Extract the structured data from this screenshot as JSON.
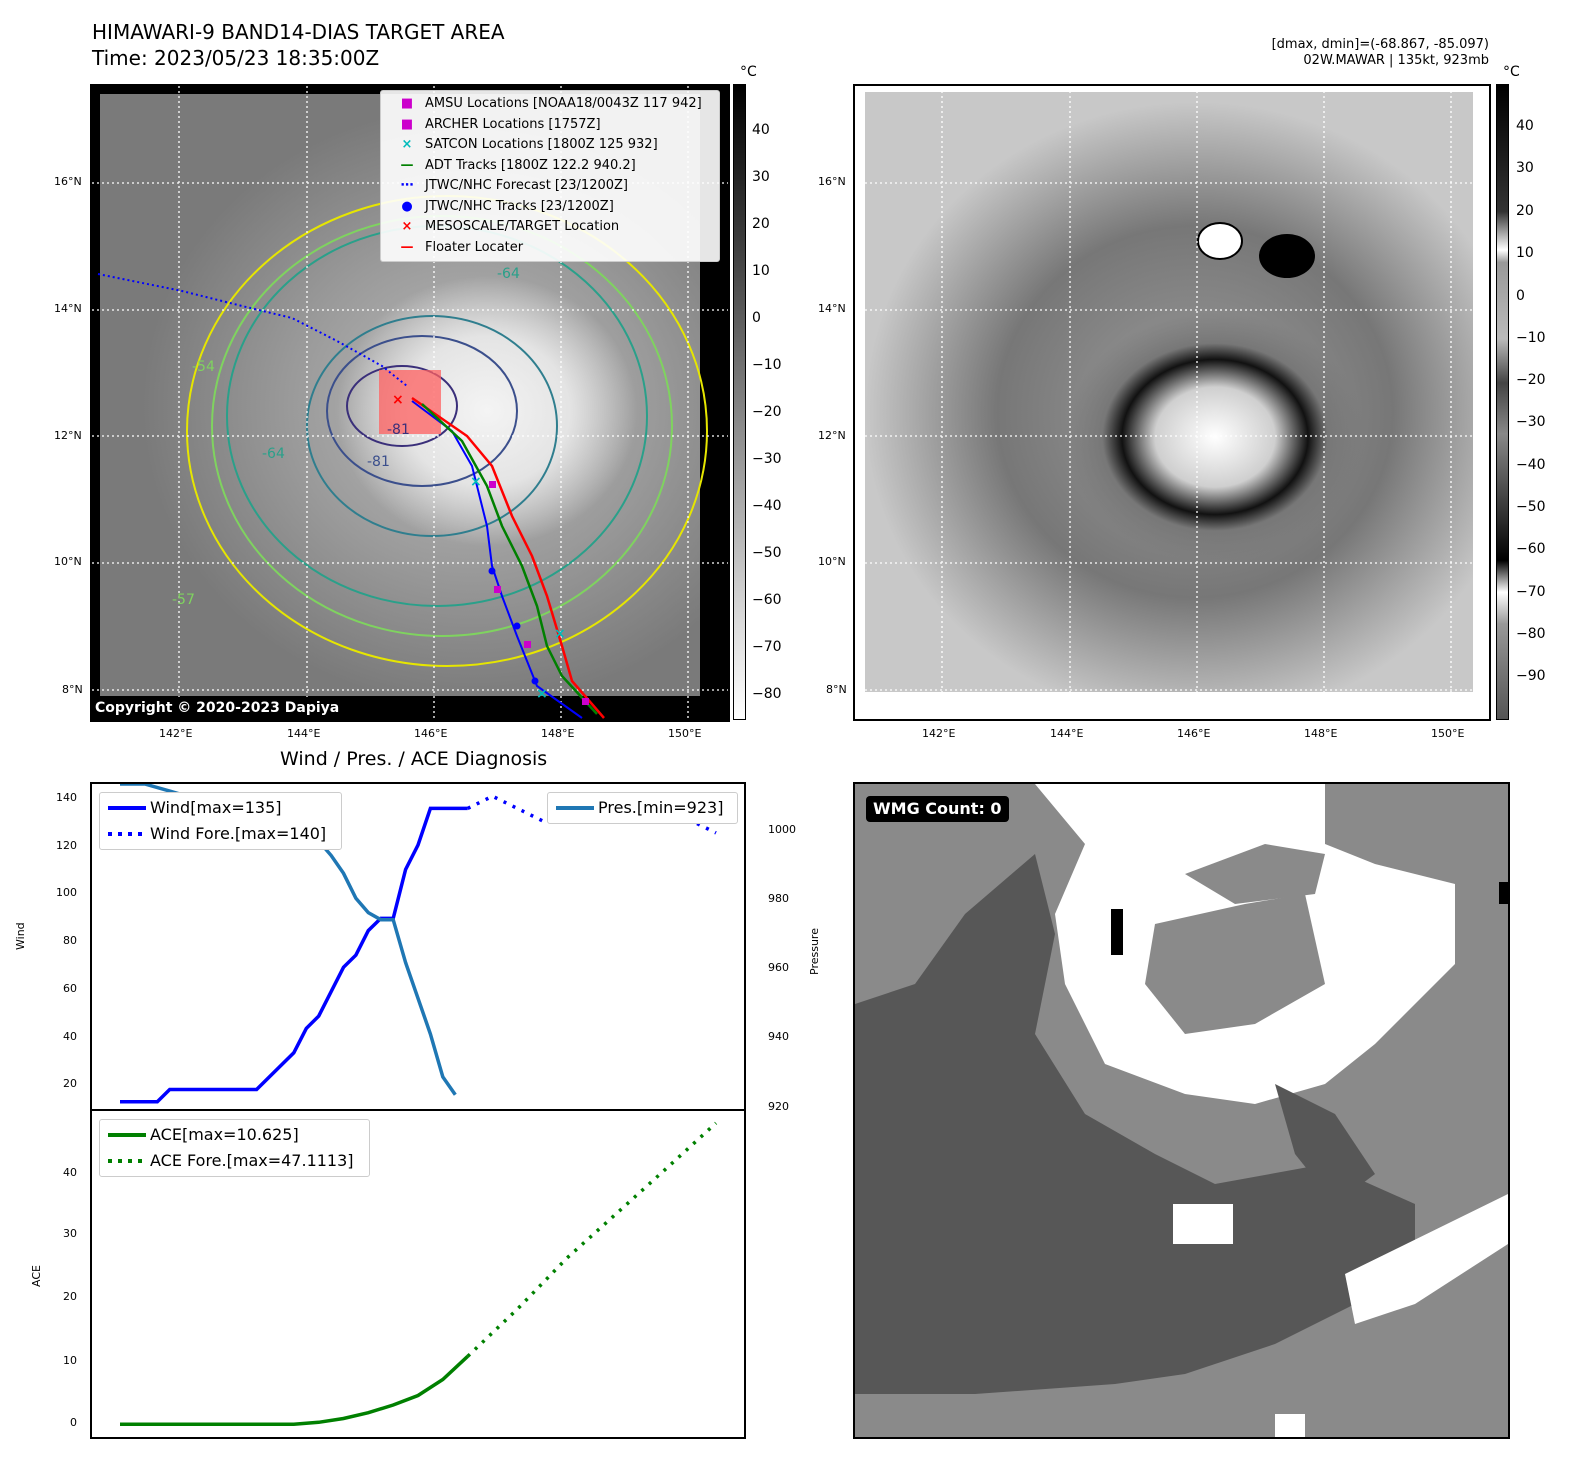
{
  "header": {
    "title_line1": "HIMAWARI-9 BAND14-DIAS TARGET AREA",
    "title_line2": "Time: 2023/05/23 18:35:00Z",
    "dmax_dmin": "[dmax, dmin]=(-68.867, -85.097)",
    "storm_info": "02W.MAWAR | 135kt, 923mb"
  },
  "map_left": {
    "lat_labels": [
      "16°N",
      "14°N",
      "12°N",
      "10°N",
      "8°N"
    ],
    "lon_labels": [
      "142°E",
      "144°E",
      "146°E",
      "148°E",
      "150°E"
    ],
    "contour_labels": [
      "-64",
      "-54",
      "-81",
      "-81",
      "-64",
      "-57"
    ],
    "copyright": "Copyright © 2020-2023 Dapiya",
    "legend": [
      {
        "label": "AMSU Locations [NOAA18/0043Z 117 942]",
        "marker": "■",
        "color": "#cc00cc"
      },
      {
        "label": "ARCHER Locations [1757Z]",
        "marker": "■",
        "color": "#cc00cc"
      },
      {
        "label": "SATCON Locations [1800Z 125 932]",
        "marker": "×",
        "color": "#00bbbb"
      },
      {
        "label": "ADT Tracks [1800Z 122.2 940.2]",
        "marker": "—",
        "color": "#008000"
      },
      {
        "label": "JTWC/NHC Forecast [23/1200Z]",
        "marker": "⋯",
        "color": "#0000ff"
      },
      {
        "label": "JTWC/NHC Tracks [23/1200Z]",
        "marker": "●",
        "color": "#0000ff"
      },
      {
        "label": "MESOSCALE/TARGET Location",
        "marker": "×",
        "color": "#ff0000"
      },
      {
        "label": "Floater Locater",
        "marker": "—",
        "color": "#ff0000"
      }
    ],
    "colorbar": {
      "unit": "°C",
      "ticks": [
        "40",
        "30",
        "20",
        "10",
        "0",
        "−10",
        "−20",
        "−30",
        "−40",
        "−50",
        "−60",
        "−70",
        "−80"
      ]
    }
  },
  "map_right": {
    "lat_labels": [
      "16°N",
      "14°N",
      "12°N",
      "10°N",
      "8°N"
    ],
    "lon_labels": [
      "142°E",
      "144°E",
      "146°E",
      "148°E",
      "150°E"
    ],
    "colorbar": {
      "unit": "°C",
      "ticks": [
        "40",
        "30",
        "20",
        "10",
        "0",
        "−10",
        "−20",
        "−30",
        "−40",
        "−50",
        "−60",
        "−70",
        "−80",
        "−90"
      ]
    }
  },
  "diag": {
    "title": "Wind / Pres. / ACE Diagnosis",
    "wind_ylabel": "Wind",
    "pres_ylabel": "Pressure",
    "ace_ylabel": "ACE",
    "wind_ticks": [
      "140",
      "120",
      "100",
      "80",
      "60",
      "40",
      "20"
    ],
    "pres_ticks": [
      "1000",
      "980",
      "960",
      "940",
      "920"
    ],
    "ace_ticks": [
      "40",
      "30",
      "20",
      "10",
      "0"
    ]
  },
  "wmg": {
    "label": "WMG Count: 0"
  },
  "chart_data": [
    {
      "type": "line",
      "title": "Wind / Pres. / ACE Diagnosis",
      "ylabel": "Wind",
      "ylim": [
        12,
        145
      ],
      "series": [
        {
          "name": "Wind[max=135]",
          "color": "#0000ff",
          "style": "solid",
          "x": [
            0,
            1,
            2,
            3,
            4,
            5,
            6,
            7,
            8,
            9,
            10,
            11,
            12,
            13,
            14,
            15,
            16,
            17,
            18,
            19,
            20,
            21,
            22,
            23,
            24,
            25,
            26,
            27,
            28
          ],
          "y": [
            15,
            15,
            15,
            15,
            20,
            20,
            20,
            20,
            20,
            20,
            20,
            20,
            25,
            30,
            35,
            45,
            50,
            60,
            70,
            75,
            85,
            90,
            90,
            110,
            120,
            135,
            135,
            135,
            135
          ]
        },
        {
          "name": "Wind Fore.[max=140]",
          "color": "#0000ff",
          "style": "dotted",
          "x": [
            28,
            30,
            32,
            34,
            36,
            38,
            40,
            42,
            44,
            46,
            48
          ],
          "y": [
            135,
            140,
            135,
            130,
            130,
            135,
            140,
            140,
            135,
            130,
            125
          ]
        }
      ]
    },
    {
      "type": "line",
      "ylabel": "Pressure",
      "ylim": [
        919,
        1010
      ],
      "series": [
        {
          "name": "Pres.[min=923]",
          "color": "#1f77b4",
          "style": "solid",
          "x": [
            0,
            2,
            4,
            6,
            8,
            10,
            12,
            14,
            15,
            16,
            17,
            18,
            19,
            20,
            21,
            22,
            23,
            24,
            25,
            26,
            27
          ],
          "y": [
            1010,
            1010,
            1008,
            1006,
            1004,
            1004,
            1002,
            1000,
            996,
            994,
            990,
            985,
            978,
            974,
            972,
            972,
            960,
            950,
            940,
            928,
            923
          ]
        }
      ]
    },
    {
      "type": "line",
      "ylabel": "ACE",
      "ylim": [
        -2,
        49
      ],
      "series": [
        {
          "name": "ACE[max=10.625]",
          "color": "#008000",
          "style": "solid",
          "x": [
            0,
            2,
            4,
            6,
            8,
            10,
            12,
            14,
            16,
            18,
            20,
            22,
            24,
            26,
            28
          ],
          "y": [
            0,
            0,
            0,
            0,
            0,
            0,
            0,
            0,
            0.3,
            0.9,
            1.8,
            3,
            4.5,
            7,
            10.625
          ]
        },
        {
          "name": "ACE Fore.[max=47.1113]",
          "color": "#008000",
          "style": "dotted",
          "x": [
            28,
            32,
            36,
            40,
            44,
            48
          ],
          "y": [
            10.625,
            18,
            26,
            33,
            40,
            47.1113
          ]
        }
      ]
    }
  ]
}
